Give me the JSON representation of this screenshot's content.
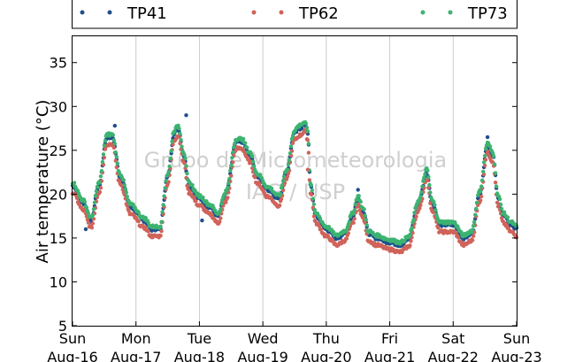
{
  "chart_data": {
    "type": "scatter",
    "ylabel": "Air temperature (°C)",
    "xlabel": "",
    "ylim": [
      5,
      38
    ],
    "yticks": [
      5,
      10,
      15,
      20,
      25,
      30,
      35
    ],
    "xlim": [
      "2021-08-16 00:00",
      "2021-08-23 00:00"
    ],
    "x_ticks": [
      {
        "day": "Sun",
        "date": "Aug-16"
      },
      {
        "day": "Mon",
        "date": "Aug-17"
      },
      {
        "day": "Tue",
        "date": "Aug-18"
      },
      {
        "day": "Wed",
        "date": "Aug-19"
      },
      {
        "day": "Thu",
        "date": "Aug-20"
      },
      {
        "day": "Fri",
        "date": "Aug-21"
      },
      {
        "day": "Sat",
        "date": "Aug-22"
      },
      {
        "day": "Sun",
        "date": "Aug-23"
      }
    ],
    "grid": "vertical",
    "legend_placement": "top",
    "watermark": [
      "Grupo de Micrometeorologia",
      "IAG / USP"
    ],
    "series": [
      {
        "name": "TP41",
        "color": "#1f4e8c"
      },
      {
        "name": "TP62",
        "color": "#d0635a"
      },
      {
        "name": "TP73",
        "color": "#3cb371"
      }
    ],
    "profile": {
      "x": [
        "2021-08-16 00:00",
        "2021-08-16 04:00",
        "2021-08-16 07:00",
        "2021-08-16 10:00",
        "2021-08-16 13:00",
        "2021-08-16 15:00",
        "2021-08-16 18:00",
        "2021-08-16 22:00",
        "2021-08-17 03:00",
        "2021-08-17 06:00",
        "2021-08-17 09:00",
        "2021-08-17 12:00",
        "2021-08-17 14:30",
        "2021-08-17 16:00",
        "2021-08-17 18:00",
        "2021-08-17 20:00",
        "2021-08-18 00:00",
        "2021-08-18 04:00",
        "2021-08-18 07:00",
        "2021-08-18 10:00",
        "2021-08-18 14:00",
        "2021-08-18 16:00",
        "2021-08-18 19:00",
        "2021-08-18 22:00",
        "2021-08-19 02:00",
        "2021-08-19 06:00",
        "2021-08-19 09:00",
        "2021-08-19 12:00",
        "2021-08-19 14:00",
        "2021-08-19 16:00",
        "2021-08-19 17:00",
        "2021-08-19 18:00",
        "2021-08-19 20:00",
        "2021-08-20 00:00",
        "2021-08-20 04:00",
        "2021-08-20 07:00",
        "2021-08-20 10:00",
        "2021-08-20 12:00",
        "2021-08-20 14:00",
        "2021-08-20 16:00",
        "2021-08-20 19:00",
        "2021-08-21 00:00",
        "2021-08-21 04:00",
        "2021-08-21 07:00",
        "2021-08-21 11:00",
        "2021-08-21 14:00",
        "2021-08-21 16:00",
        "2021-08-21 19:00",
        "2021-08-22 00:00",
        "2021-08-22 04:00",
        "2021-08-22 07:00",
        "2021-08-22 10:00",
        "2021-08-22 13:00",
        "2021-08-22 15:00",
        "2021-08-22 17:00",
        "2021-08-22 19:00",
        "2021-08-22 22:00",
        "2021-08-23 00:00"
      ],
      "y": [
        21,
        19,
        17,
        21,
        26.5,
        26.5,
        22,
        18.5,
        17,
        16,
        16,
        22,
        27,
        27.5,
        24.5,
        21,
        19.5,
        18.5,
        17.5,
        20,
        26,
        26,
        24.5,
        22,
        20.5,
        19.5,
        22.5,
        27,
        27.5,
        28,
        27,
        21,
        17.5,
        16,
        15,
        15.5,
        17.5,
        19.5,
        18,
        15.5,
        15,
        14.5,
        14.2,
        14.8,
        19,
        22.5,
        19,
        16.5,
        16.5,
        15,
        15.5,
        20,
        25.5,
        24.5,
        19.5,
        17.5,
        16.5,
        16
      ]
    },
    "series_offsets": {
      "TP41": 0.0,
      "TP62": -0.8,
      "TP73": 0.3
    },
    "outliers": [
      {
        "series": "TP41",
        "x": "2021-08-16 16:00",
        "y": 27.8
      },
      {
        "series": "TP41",
        "x": "2021-08-17 19:00",
        "y": 29
      },
      {
        "series": "TP41",
        "x": "2021-08-18 01:00",
        "y": 17
      },
      {
        "series": "TP41",
        "x": "2021-08-16 05:00",
        "y": 16
      },
      {
        "series": "TP62",
        "x": "2021-08-19 17:00",
        "y": 22.8
      },
      {
        "series": "TP41",
        "x": "2021-08-20 12:00",
        "y": 20.5
      },
      {
        "series": "TP41",
        "x": "2021-08-22 13:00",
        "y": 26.5
      }
    ]
  }
}
